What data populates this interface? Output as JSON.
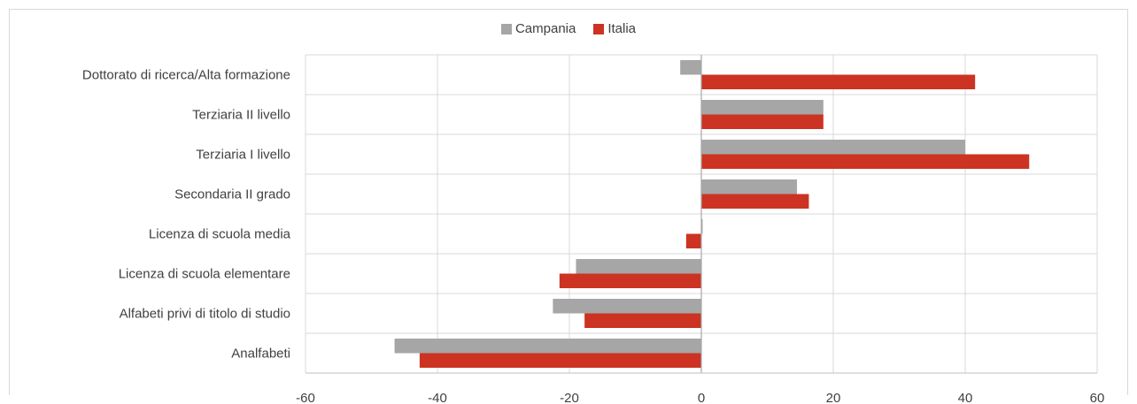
{
  "chart_data": {
    "type": "bar",
    "orientation": "horizontal",
    "categories": [
      "Dottorato di ricerca/Alta formazione",
      "Terziaria II livello",
      "Terziaria I livello",
      "Secondaria II grado",
      "Licenza di scuola media",
      "Licenza di scuola elementare",
      "Alfabeti privi di titolo di studio",
      "Analfabeti"
    ],
    "series": [
      {
        "name": "Campania",
        "color": "#a6a6a6",
        "values": [
          -3.2,
          18.5,
          40,
          14.5,
          0.2,
          -19,
          -22.5,
          -46.5
        ]
      },
      {
        "name": "Italia",
        "color": "#cc3322",
        "values": [
          41.5,
          18.5,
          49.7,
          16.3,
          -2.3,
          -21.5,
          -17.7,
          -42.7
        ]
      }
    ],
    "xlim": [
      -60,
      60
    ],
    "xticks": [
      "-60",
      "-40",
      "-20",
      "0",
      "20",
      "40",
      "60"
    ],
    "grid": true,
    "legend_position": "top-center"
  }
}
